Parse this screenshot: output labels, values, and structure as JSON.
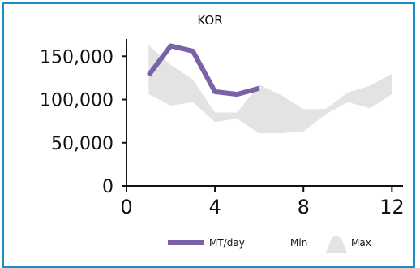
{
  "chart_data": {
    "type": "line",
    "title": "KOR",
    "xlabel": "",
    "ylabel": "",
    "xlim": [
      0,
      12.5
    ],
    "ylim": [
      0,
      170000
    ],
    "x_ticks": [
      "0",
      "4",
      "8",
      "12"
    ],
    "x_tick_values": [
      0,
      4,
      8,
      12
    ],
    "y_ticks": [
      "0",
      "50,000",
      "100,000",
      "150,000"
    ],
    "y_tick_values": [
      0,
      50000,
      100000,
      150000
    ],
    "grid": false,
    "legend_position": "bottom",
    "series": [
      {
        "name": "MT/day",
        "type": "line",
        "color": "#7b61a8",
        "x": [
          1,
          2,
          3,
          4,
          5,
          6
        ],
        "y": [
          128000,
          162000,
          156000,
          109000,
          106000,
          113000
        ]
      }
    ],
    "bands": [
      {
        "lower_name": "Min",
        "upper_name": "Max",
        "color": "#e3e3e3",
        "x": [
          1,
          2,
          3,
          4,
          5,
          6,
          7,
          8,
          9,
          10,
          11,
          12
        ],
        "min": [
          106000,
          93000,
          97000,
          74000,
          78000,
          61000,
          61000,
          63000,
          83000,
          97000,
          90000,
          106000
        ],
        "max": [
          163000,
          140000,
          123000,
          85000,
          85000,
          117000,
          105000,
          89000,
          89000,
          108000,
          116000,
          130000
        ]
      }
    ],
    "legend": [
      "MT/day",
      "Min",
      "Max"
    ]
  }
}
